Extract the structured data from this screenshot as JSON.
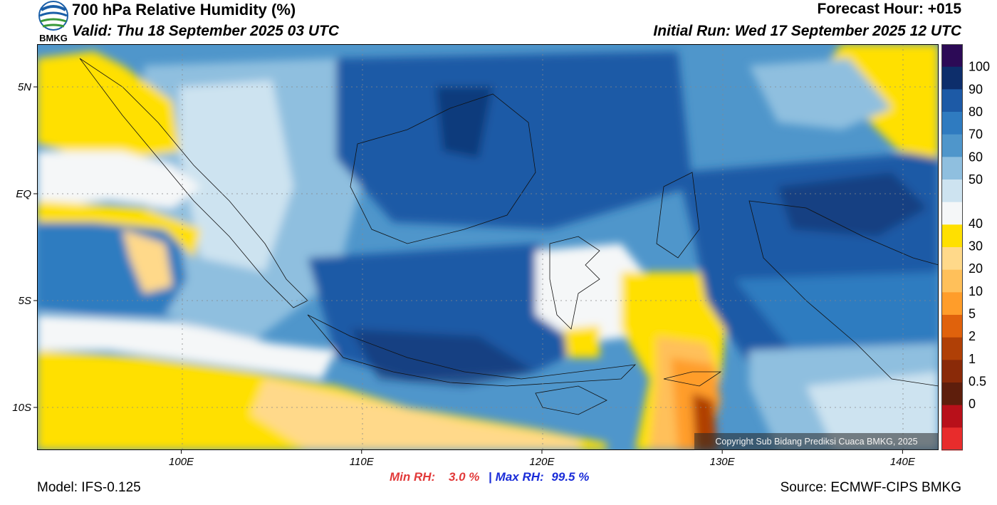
{
  "header": {
    "title": "700 hPa Relative Humidity (%)",
    "valid": "Valid: Thu 18 September 2025 03 UTC",
    "forecast_hour": "Forecast Hour: +015",
    "initial_run": "Initial Run: Wed 17 September 2025 12 UTC",
    "logo_text": "BMKG"
  },
  "map": {
    "region": "Indonesia",
    "lat_labels": [
      "5N",
      "EQ",
      "5S",
      "10S"
    ],
    "lon_labels": [
      "100E",
      "110E",
      "120E",
      "130E",
      "140E"
    ],
    "lat_values": [
      5,
      0,
      -5,
      -10
    ],
    "lon_values": [
      100,
      110,
      120,
      130,
      140
    ],
    "extent": {
      "lon_min": 92,
      "lon_max": 142,
      "lat_min": -12,
      "lat_max": 7
    },
    "copyright": "Copyright Sub Bidang Prediksi Cuaca BMKG, 2025"
  },
  "stats": {
    "min_label": "Min RH:",
    "min_value": "3.0 %",
    "separator": "|",
    "max_label": "Max RH:",
    "max_value": "99.5 %"
  },
  "colorbar": {
    "labels": [
      "100",
      "90",
      "80",
      "70",
      "60",
      "50",
      "40",
      "30",
      "20",
      "10",
      "5",
      "2",
      "1",
      "0.5",
      "0"
    ],
    "colors_top_to_bottom": [
      "#2c0a56",
      "#0d2e6b",
      "#1d5aa6",
      "#2f7bc0",
      "#4f96cb",
      "#8fbfdf",
      "#cde3f0",
      "#f5f7f8",
      "#ffe000",
      "#ffd98a",
      "#ffc05a",
      "#ff9d2a",
      "#e0620c",
      "#b04006",
      "#8a2a08",
      "#5e1e0c",
      "#b8101a",
      "#e82c2c"
    ]
  },
  "footer": {
    "model": "Model: IFS-0.125",
    "source": "Source: ECMWF-CIPS BMKG"
  }
}
